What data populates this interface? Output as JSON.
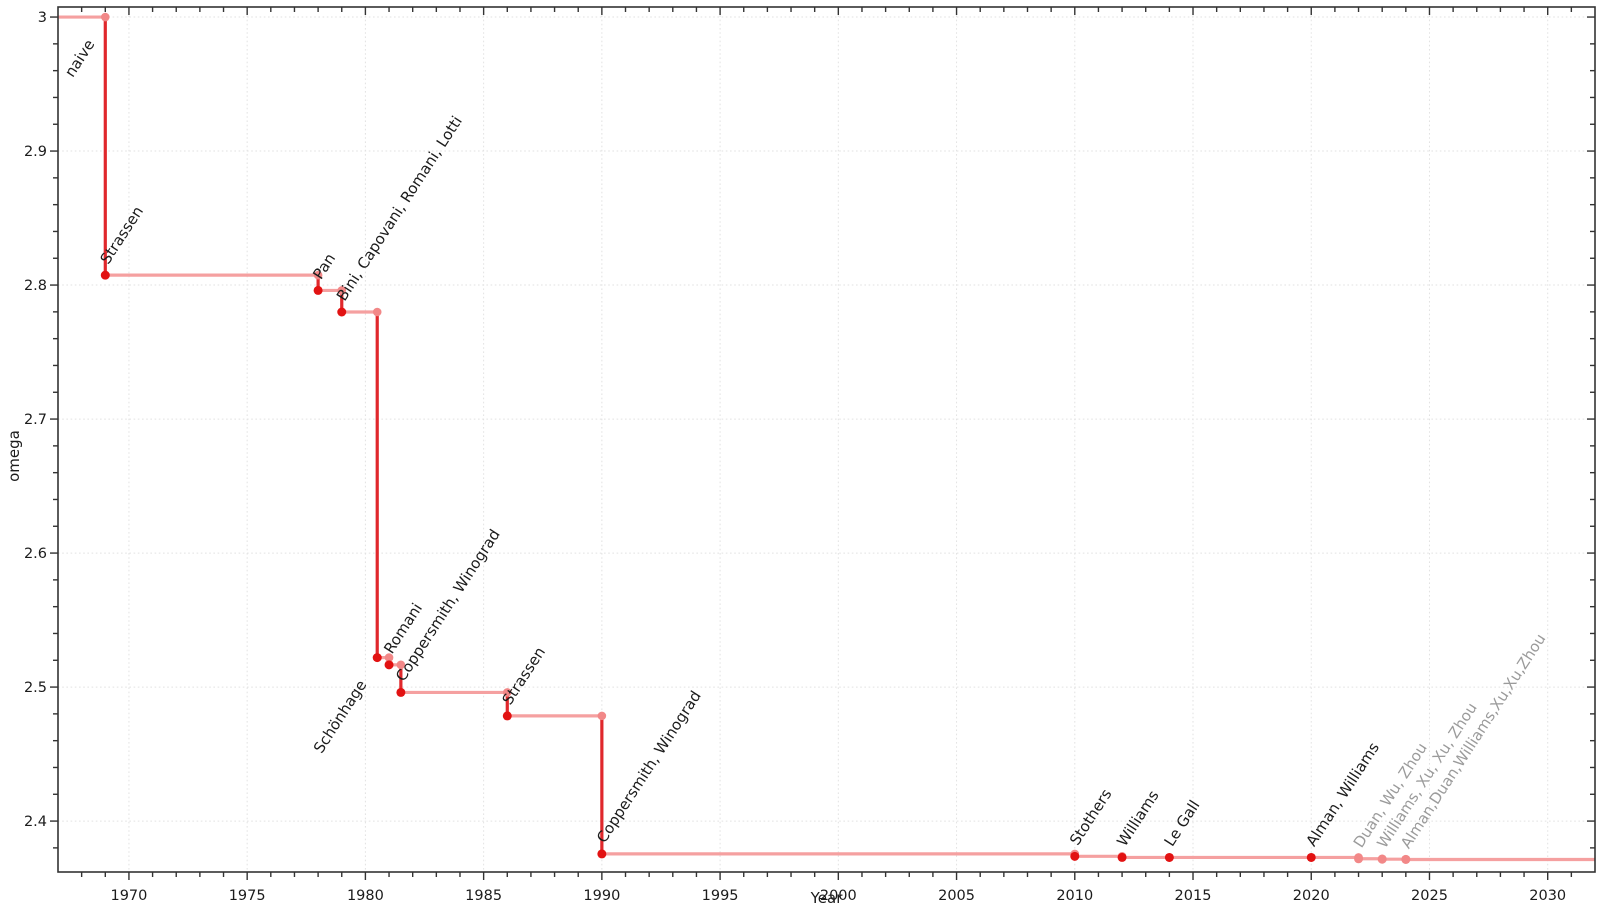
{
  "page": {
    "background": "#ffffff"
  },
  "chart_data": {
    "type": "line",
    "line_style": "step-post",
    "title": "",
    "xlabel": "Year",
    "ylabel": "omega",
    "xlim": [
      1967,
      2032
    ],
    "ylim": [
      2.362,
      3.0075
    ],
    "grid": {
      "show": true,
      "style": "dotted"
    },
    "x_major_ticks": [
      1970,
      1975,
      1980,
      1985,
      1990,
      1995,
      2000,
      2005,
      2010,
      2015,
      2020,
      2025,
      2030
    ],
    "x_minor_step": 1,
    "y_major_ticks": [
      {
        "value": 3.0,
        "label": "3"
      },
      {
        "value": 2.9,
        "label": "2.9"
      },
      {
        "value": 2.8,
        "label": "2.8"
      },
      {
        "value": 2.7,
        "label": "2.7"
      },
      {
        "value": 2.6,
        "label": "2.6"
      },
      {
        "value": 2.5,
        "label": "2.5"
      },
      {
        "value": 2.4,
        "label": "2.4"
      }
    ],
    "y_minor_step": 0.02,
    "initial_bound": {
      "label": "naive",
      "omega": 3.0
    },
    "discoveries": [
      {
        "year": 1969,
        "omega": 2.8074,
        "label": "Strassen"
      },
      {
        "year": 1978,
        "omega": 2.796,
        "label": "Pan"
      },
      {
        "year": 1979,
        "omega": 2.7799,
        "label": "Bini, Capovani, Romani, Lotti"
      },
      {
        "year": 1980.5,
        "omega": 2.522,
        "label": "Schönhage",
        "label_side": "below"
      },
      {
        "year": 1981,
        "omega": 2.5166,
        "label": "Romani"
      },
      {
        "year": 1981.5,
        "omega": 2.496,
        "label": "Coppersmith, Winograd"
      },
      {
        "year": 1986,
        "omega": 2.4785,
        "label": "Strassen"
      },
      {
        "year": 1990,
        "omega": 2.3755,
        "label": "Coppersmith, Winograd"
      },
      {
        "year": 2010,
        "omega": 2.3737,
        "label": "Stothers"
      },
      {
        "year": 2012,
        "omega": 2.372873,
        "label": "Williams"
      },
      {
        "year": 2014,
        "omega": 2.372864,
        "label": "Le Gall"
      },
      {
        "year": 2020,
        "omega": 2.37286,
        "label": "Alman, Williams"
      },
      {
        "year": 2022,
        "omega": 2.371866,
        "label": "Duan, Wu, Zhou",
        "faded": true
      },
      {
        "year": 2023,
        "omega": 2.371552,
        "label": "Williams, Xu, Xu, Zhou",
        "faded": true
      },
      {
        "year": 2024,
        "omega": 2.371339,
        "label": "Alman,Duan,Williams,Xu,Xu,Zhou",
        "faded": true
      }
    ],
    "colors": {
      "step_horizontal": "#f5a0a0",
      "step_vertical": "#e0282c",
      "record_point": "#e21212",
      "corner_point": "#f28888",
      "faded_point": "#f28888",
      "label_text": "#1c1c1c",
      "faded_label_text": "#9b9b9b",
      "grid": "#e2e2e2",
      "axis": "#333333",
      "tick_label": "#1c1c1c"
    }
  }
}
